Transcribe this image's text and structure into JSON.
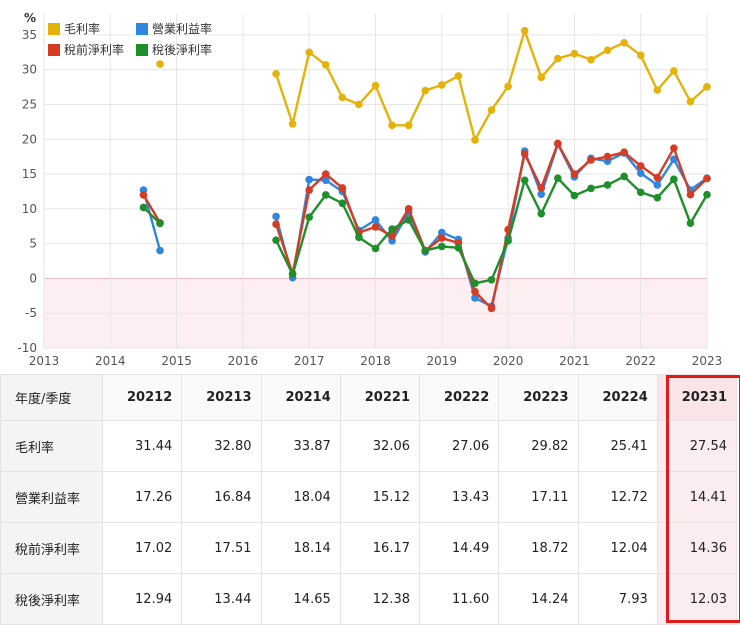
{
  "colors": {
    "gross": "#e4b20b",
    "operating": "#2e86de",
    "pretax": "#d63b24",
    "aftertax": "#1f8f2b",
    "highlight_border": "#e11a1a",
    "negative_zone": "#fdeff1"
  },
  "chart_data": {
    "type": "line",
    "ylabel": "%",
    "ylim": [
      -10,
      38
    ],
    "yticks": [
      -10,
      -5,
      0,
      5,
      10,
      15,
      20,
      25,
      30,
      35
    ],
    "xlim": [
      2013,
      2023
    ],
    "xticks": [
      "2013",
      "2014",
      "2015",
      "2016",
      "2017",
      "2018",
      "2019",
      "2020",
      "2021",
      "2022",
      "2023"
    ],
    "series": [
      {
        "name": "毛利率",
        "key": "gross",
        "points": [
          [
            2014.75,
            30.8
          ],
          [
            2016.5,
            29.4
          ],
          [
            2016.75,
            22.2
          ],
          [
            2017.0,
            32.5
          ],
          [
            2017.25,
            30.7
          ],
          [
            2017.5,
            26.0
          ],
          [
            2017.75,
            25.0
          ],
          [
            2018.0,
            27.7
          ],
          [
            2018.25,
            22.0
          ],
          [
            2018.5,
            22.0
          ],
          [
            2018.75,
            27.0
          ],
          [
            2019.0,
            27.8
          ],
          [
            2019.25,
            29.1
          ],
          [
            2019.5,
            19.9
          ],
          [
            2019.75,
            24.2
          ],
          [
            2020.0,
            27.6
          ],
          [
            2020.25,
            35.6
          ],
          [
            2020.5,
            28.9
          ],
          [
            2020.75,
            31.6
          ],
          [
            2021.0,
            32.3
          ],
          [
            2021.25,
            31.44
          ],
          [
            2021.5,
            32.8
          ],
          [
            2021.75,
            33.87
          ],
          [
            2022.0,
            32.06
          ],
          [
            2022.25,
            27.06
          ],
          [
            2022.5,
            29.82
          ],
          [
            2022.75,
            25.41
          ],
          [
            2023.0,
            27.54
          ]
        ]
      },
      {
        "name": "營業利益率",
        "key": "operating",
        "points": [
          [
            2014.5,
            12.7
          ],
          [
            2014.75,
            4.0
          ],
          [
            2016.5,
            8.9
          ],
          [
            2016.75,
            0.1
          ],
          [
            2017.0,
            14.2
          ],
          [
            2017.25,
            14.1
          ],
          [
            2017.5,
            12.5
          ],
          [
            2017.75,
            6.9
          ],
          [
            2018.0,
            8.4
          ],
          [
            2018.25,
            5.4
          ],
          [
            2018.5,
            9.5
          ],
          [
            2018.75,
            3.8
          ],
          [
            2019.0,
            6.6
          ],
          [
            2019.25,
            5.6
          ],
          [
            2019.5,
            -2.8
          ],
          [
            2019.75,
            -4.0
          ],
          [
            2020.0,
            5.8
          ],
          [
            2020.25,
            18.3
          ],
          [
            2020.5,
            12.1
          ],
          [
            2020.75,
            19.3
          ],
          [
            2021.0,
            14.6
          ],
          [
            2021.25,
            17.26
          ],
          [
            2021.5,
            16.84
          ],
          [
            2021.75,
            18.04
          ],
          [
            2022.0,
            15.12
          ],
          [
            2022.25,
            13.43
          ],
          [
            2022.5,
            17.11
          ],
          [
            2022.75,
            12.72
          ],
          [
            2023.0,
            14.41
          ]
        ]
      },
      {
        "name": "稅前淨利率",
        "key": "pretax",
        "points": [
          [
            2014.5,
            12.0
          ],
          [
            2014.75,
            8.0
          ],
          [
            2016.5,
            7.8
          ],
          [
            2016.75,
            0.7
          ],
          [
            2017.0,
            12.7
          ],
          [
            2017.25,
            15.0
          ],
          [
            2017.5,
            13.0
          ],
          [
            2017.75,
            6.6
          ],
          [
            2018.0,
            7.4
          ],
          [
            2018.25,
            6.1
          ],
          [
            2018.5,
            10.0
          ],
          [
            2018.75,
            4.0
          ],
          [
            2019.0,
            5.8
          ],
          [
            2019.25,
            5.1
          ],
          [
            2019.5,
            -1.9
          ],
          [
            2019.75,
            -4.3
          ],
          [
            2020.0,
            7.0
          ],
          [
            2020.25,
            17.9
          ],
          [
            2020.5,
            13.0
          ],
          [
            2020.75,
            19.4
          ],
          [
            2021.0,
            15.0
          ],
          [
            2021.25,
            17.02
          ],
          [
            2021.5,
            17.51
          ],
          [
            2021.75,
            18.14
          ],
          [
            2022.0,
            16.17
          ],
          [
            2022.25,
            14.49
          ],
          [
            2022.5,
            18.72
          ],
          [
            2022.75,
            12.04
          ],
          [
            2023.0,
            14.36
          ]
        ]
      },
      {
        "name": "稅後淨利率",
        "key": "aftertax",
        "points": [
          [
            2014.5,
            10.2
          ],
          [
            2014.75,
            7.9
          ],
          [
            2016.5,
            5.5
          ],
          [
            2016.75,
            0.6
          ],
          [
            2017.0,
            8.8
          ],
          [
            2017.25,
            12.0
          ],
          [
            2017.5,
            10.8
          ],
          [
            2017.75,
            5.9
          ],
          [
            2018.0,
            4.3
          ],
          [
            2018.25,
            7.1
          ],
          [
            2018.5,
            8.4
          ],
          [
            2018.75,
            4.0
          ],
          [
            2019.0,
            4.6
          ],
          [
            2019.25,
            4.4
          ],
          [
            2019.5,
            -0.7
          ],
          [
            2019.75,
            -0.2
          ],
          [
            2020.0,
            5.4
          ],
          [
            2020.25,
            14.1
          ],
          [
            2020.5,
            9.3
          ],
          [
            2020.75,
            14.4
          ],
          [
            2021.0,
            11.9
          ],
          [
            2021.25,
            12.94
          ],
          [
            2021.5,
            13.44
          ],
          [
            2021.75,
            14.65
          ],
          [
            2022.0,
            12.38
          ],
          [
            2022.25,
            11.6
          ],
          [
            2022.5,
            14.24
          ],
          [
            2022.75,
            7.93
          ],
          [
            2023.0,
            12.03
          ]
        ]
      }
    ],
    "legend_position": "top-left"
  },
  "table": {
    "corner_label": "年度/季度",
    "columns": [
      "20212",
      "20213",
      "20214",
      "20221",
      "20222",
      "20223",
      "20224",
      "20231"
    ],
    "highlighted_column": "20231",
    "rows": [
      {
        "label": "毛利率",
        "values": [
          "31.44",
          "32.80",
          "33.87",
          "32.06",
          "27.06",
          "29.82",
          "25.41",
          "27.54"
        ]
      },
      {
        "label": "營業利益率",
        "values": [
          "17.26",
          "16.84",
          "18.04",
          "15.12",
          "13.43",
          "17.11",
          "12.72",
          "14.41"
        ]
      },
      {
        "label": "稅前淨利率",
        "values": [
          "17.02",
          "17.51",
          "18.14",
          "16.17",
          "14.49",
          "18.72",
          "12.04",
          "14.36"
        ]
      },
      {
        "label": "稅後淨利率",
        "values": [
          "12.94",
          "13.44",
          "14.65",
          "12.38",
          "11.60",
          "14.24",
          "7.93",
          "12.03"
        ]
      }
    ]
  }
}
